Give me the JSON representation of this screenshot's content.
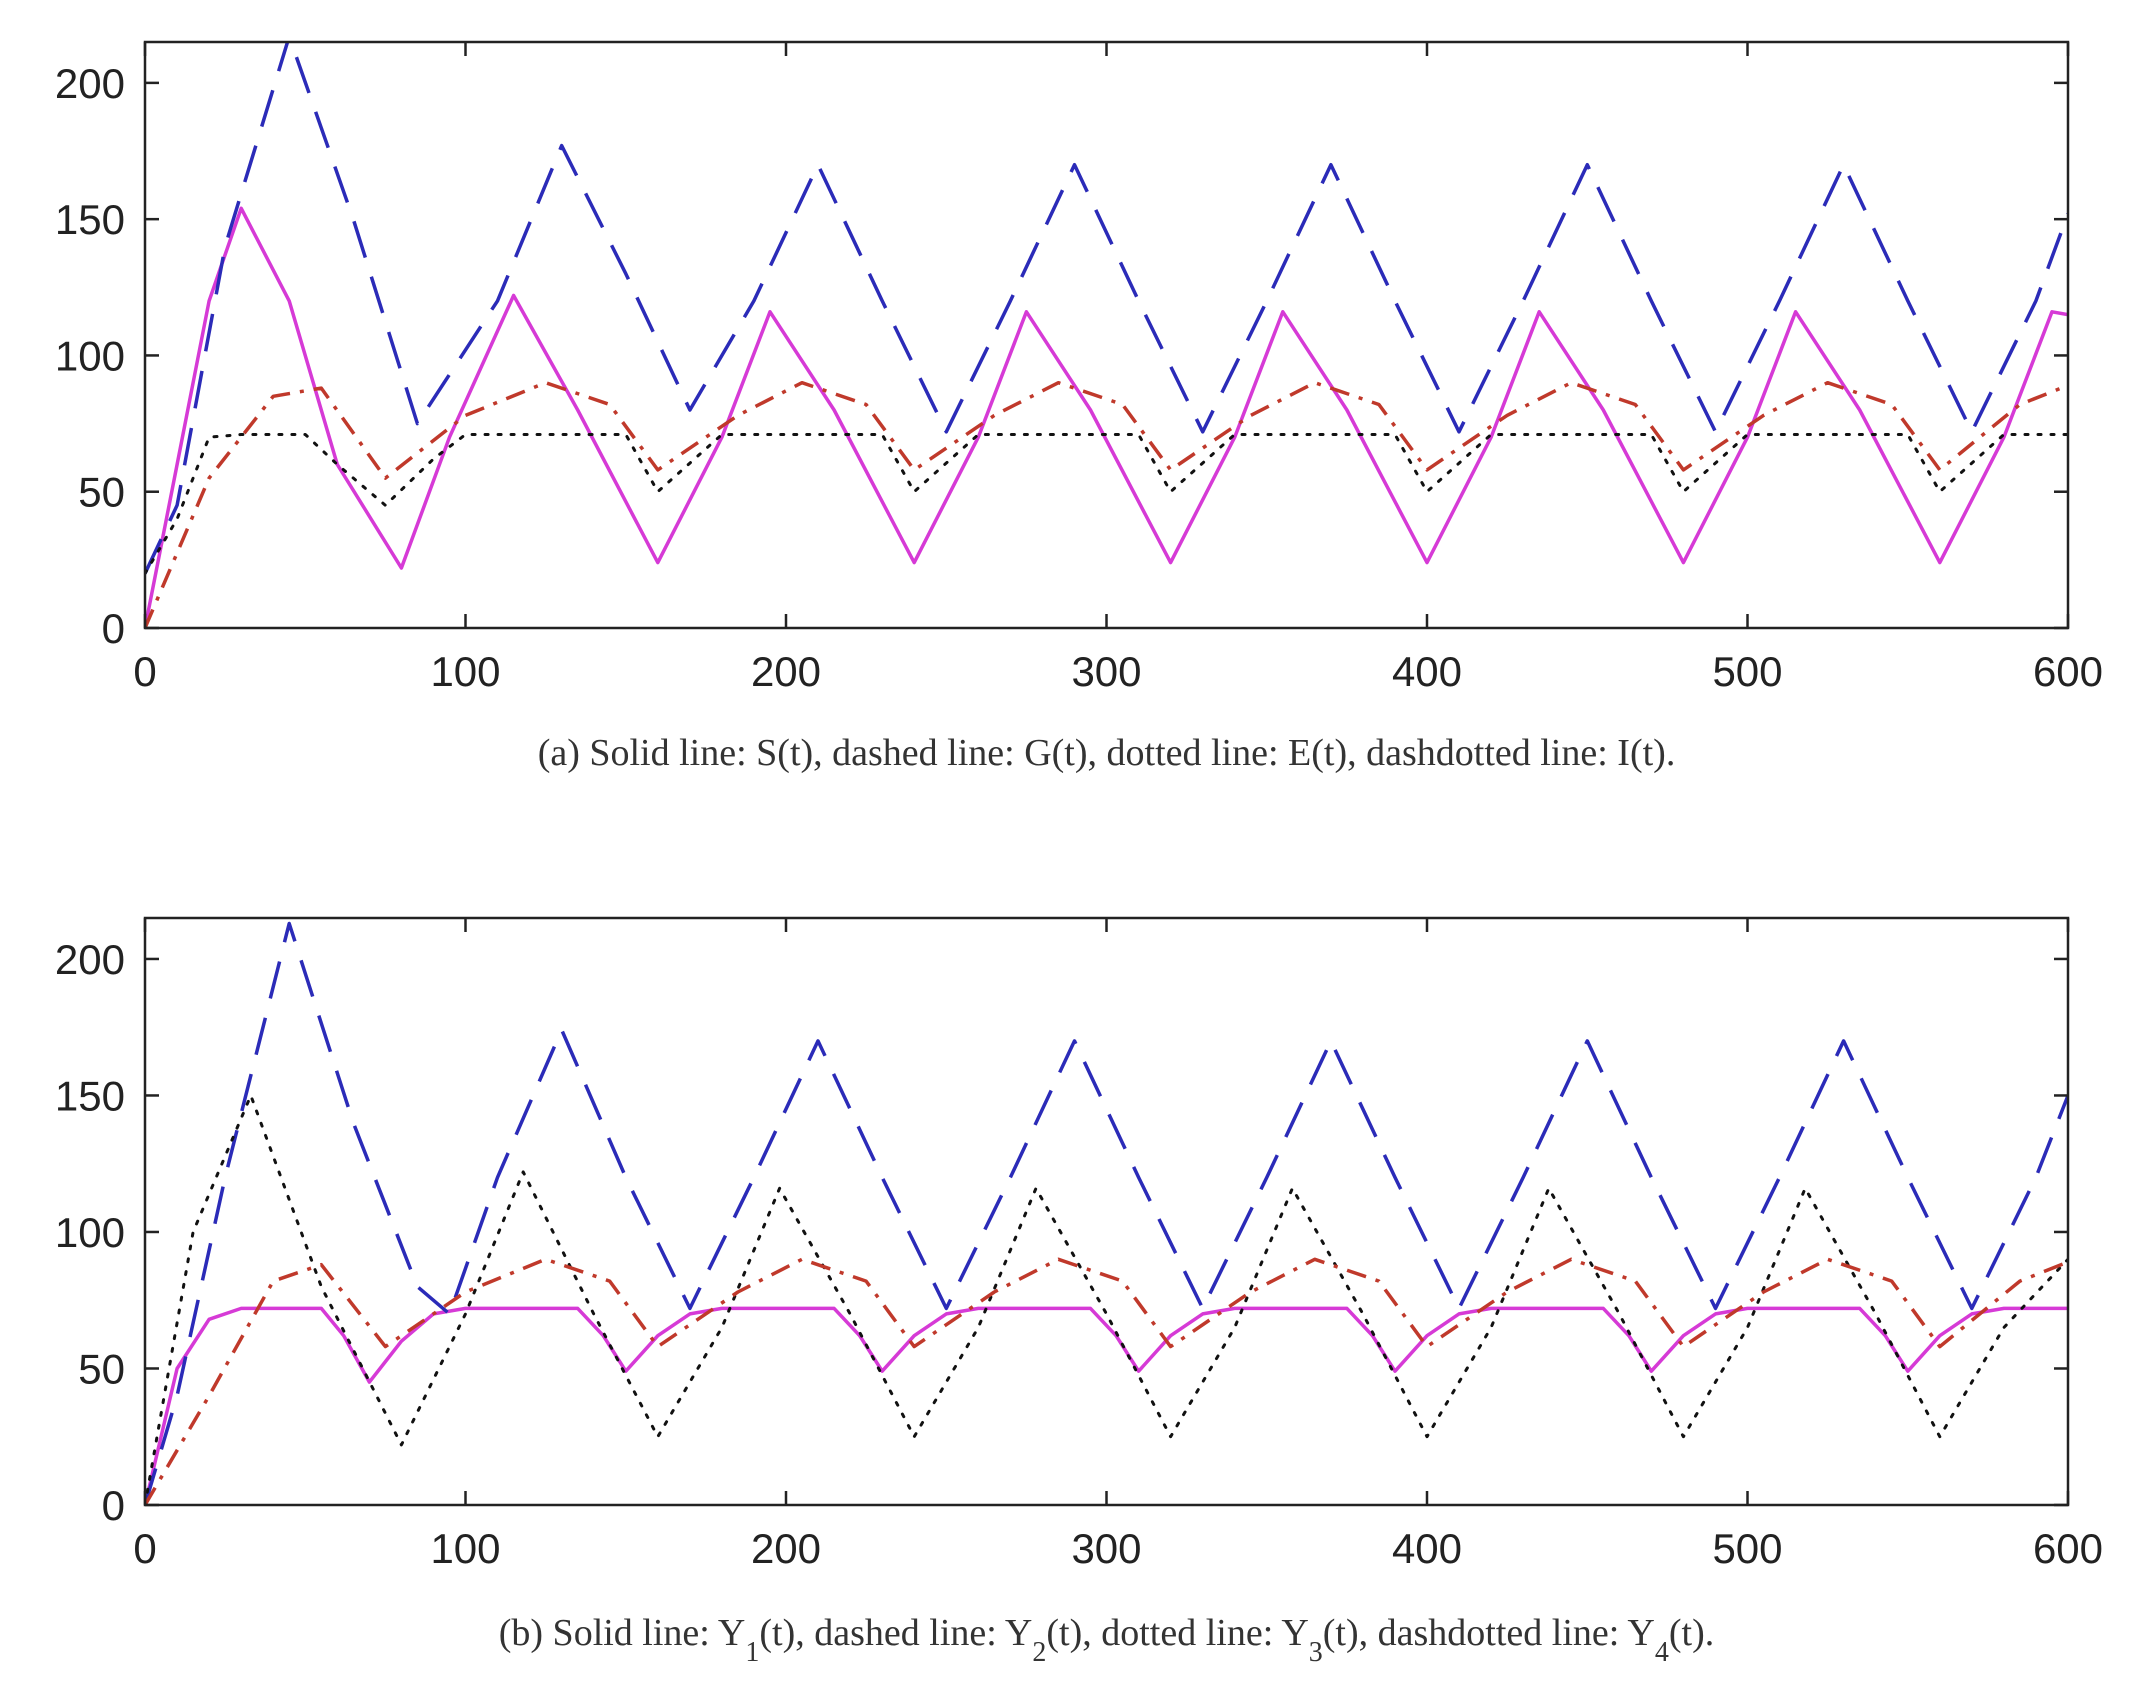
{
  "chart_data": [
    {
      "type": "line",
      "caption": "(a) Solid line: S(t), dashed line: G(t), dotted line: E(t), dashdotted line: I(t).",
      "xlim": [
        0,
        600
      ],
      "ylim": [
        0,
        215
      ],
      "xticks": [
        0,
        100,
        200,
        300,
        400,
        500,
        600
      ],
      "yticks": [
        0,
        50,
        100,
        150,
        200
      ],
      "grid": false,
      "series": [
        {
          "name": "S(t)",
          "style": "solid",
          "color": "#d63ad6",
          "x": [
            0,
            10,
            20,
            30,
            45,
            60,
            80,
            95,
            115,
            135,
            160,
            180,
            195,
            215,
            240,
            260,
            275,
            295,
            320,
            340,
            355,
            375,
            400,
            420,
            435,
            455,
            480,
            500,
            515,
            535,
            560,
            580,
            595,
            600
          ],
          "y": [
            0,
            60,
            120,
            154,
            120,
            60,
            22,
            70,
            122,
            80,
            24,
            70,
            116,
            80,
            24,
            70,
            116,
            80,
            24,
            70,
            116,
            80,
            24,
            70,
            116,
            80,
            24,
            70,
            116,
            80,
            24,
            70,
            116,
            115
          ]
        },
        {
          "name": "G(t)",
          "style": "dashed",
          "color": "#2b2bb8",
          "x": [
            0,
            10,
            25,
            45,
            65,
            85,
            110,
            130,
            150,
            170,
            190,
            210,
            230,
            250,
            270,
            290,
            310,
            330,
            350,
            370,
            390,
            410,
            430,
            450,
            470,
            490,
            510,
            530,
            550,
            570,
            590,
            600
          ],
          "y": [
            20,
            45,
            140,
            217,
            150,
            75,
            120,
            177,
            130,
            80,
            120,
            170,
            120,
            72,
            120,
            170,
            120,
            72,
            120,
            170,
            120,
            72,
            120,
            170,
            120,
            72,
            120,
            170,
            120,
            72,
            120,
            152
          ]
        },
        {
          "name": "E(t)",
          "style": "dotted",
          "color": "#111111",
          "x": [
            0,
            10,
            20,
            30,
            50,
            60,
            75,
            90,
            100,
            150,
            160,
            180,
            200,
            230,
            240,
            260,
            280,
            310,
            320,
            340,
            360,
            390,
            400,
            420,
            440,
            470,
            480,
            500,
            520,
            550,
            560,
            580,
            600
          ],
          "y": [
            20,
            40,
            70,
            71,
            71,
            60,
            45,
            62,
            71,
            71,
            50,
            71,
            71,
            71,
            50,
            71,
            71,
            71,
            50,
            71,
            71,
            71,
            50,
            71,
            71,
            71,
            50,
            71,
            71,
            71,
            50,
            71,
            71
          ]
        },
        {
          "name": "I(t)",
          "style": "dashdot",
          "color": "#c0392b",
          "x": [
            0,
            20,
            40,
            55,
            75,
            100,
            125,
            145,
            160,
            185,
            205,
            225,
            240,
            265,
            285,
            305,
            320,
            345,
            365,
            385,
            400,
            425,
            445,
            465,
            480,
            505,
            525,
            545,
            560,
            585,
            600
          ],
          "y": [
            0,
            55,
            85,
            88,
            55,
            78,
            90,
            82,
            58,
            78,
            90,
            82,
            58,
            78,
            90,
            82,
            58,
            78,
            90,
            82,
            58,
            78,
            90,
            82,
            58,
            78,
            90,
            82,
            58,
            82,
            89
          ]
        }
      ]
    },
    {
      "type": "line",
      "caption": {
        "parts": [
          {
            "t": "(b) Solid line: Y"
          },
          {
            "sub": "1"
          },
          {
            "t": "(t), dashed line: Y"
          },
          {
            "sub": "2"
          },
          {
            "t": "(t), dotted line: Y"
          },
          {
            "sub": "3"
          },
          {
            "t": "(t), dashdotted line: Y"
          },
          {
            "sub": "4"
          },
          {
            "t": "(t)."
          }
        ]
      },
      "xlim": [
        0,
        600
      ],
      "ylim": [
        0,
        215
      ],
      "xticks": [
        0,
        100,
        200,
        300,
        400,
        500,
        600
      ],
      "yticks": [
        0,
        50,
        100,
        150,
        200
      ],
      "grid": false,
      "series": [
        {
          "name": "Y1(t)",
          "style": "solid",
          "color": "#d63ad6",
          "x": [
            0,
            10,
            20,
            30,
            55,
            62,
            70,
            80,
            90,
            100,
            135,
            143,
            150,
            160,
            170,
            180,
            215,
            223,
            230,
            240,
            250,
            260,
            295,
            303,
            310,
            320,
            330,
            340,
            375,
            383,
            390,
            400,
            410,
            420,
            455,
            463,
            470,
            480,
            490,
            500,
            535,
            543,
            550,
            560,
            570,
            580,
            600
          ],
          "y": [
            0,
            50,
            68,
            72,
            72,
            62,
            45,
            60,
            70,
            72,
            72,
            62,
            49,
            62,
            70,
            72,
            72,
            62,
            49,
            62,
            70,
            72,
            72,
            62,
            49,
            62,
            70,
            72,
            72,
            62,
            49,
            62,
            70,
            72,
            72,
            62,
            49,
            62,
            70,
            72,
            72,
            62,
            49,
            62,
            70,
            72,
            72
          ]
        },
        {
          "name": "Y2(t)",
          "style": "dashed",
          "color": "#2b2bb8",
          "x": [
            0,
            10,
            25,
            45,
            65,
            85,
            95,
            110,
            130,
            150,
            170,
            190,
            210,
            230,
            250,
            270,
            290,
            310,
            330,
            350,
            370,
            390,
            410,
            430,
            450,
            470,
            490,
            510,
            530,
            550,
            570,
            590,
            600
          ],
          "y": [
            0,
            40,
            120,
            213,
            140,
            80,
            70,
            120,
            174,
            120,
            72,
            120,
            170,
            120,
            72,
            120,
            170,
            120,
            72,
            120,
            170,
            120,
            72,
            120,
            170,
            120,
            72,
            120,
            170,
            120,
            72,
            120,
            150
          ]
        },
        {
          "name": "Y3(t)",
          "style": "dotted",
          "color": "#111111",
          "x": [
            0,
            15,
            33,
            55,
            80,
            100,
            118,
            140,
            160,
            180,
            198,
            220,
            240,
            260,
            278,
            300,
            320,
            340,
            358,
            380,
            400,
            420,
            438,
            460,
            480,
            500,
            518,
            540,
            560,
            580,
            600
          ],
          "y": [
            0,
            100,
            150,
            80,
            22,
            70,
            122,
            70,
            25,
            65,
            116,
            70,
            25,
            65,
            116,
            70,
            25,
            65,
            116,
            70,
            25,
            65,
            116,
            70,
            25,
            65,
            116,
            70,
            25,
            65,
            90
          ]
        },
        {
          "name": "Y4(t)",
          "style": "dashdot",
          "color": "#c0392b",
          "x": [
            0,
            20,
            40,
            55,
            75,
            100,
            125,
            145,
            160,
            185,
            205,
            225,
            240,
            265,
            285,
            305,
            320,
            345,
            365,
            385,
            400,
            425,
            445,
            465,
            480,
            505,
            525,
            545,
            560,
            585,
            600
          ],
          "y": [
            0,
            40,
            82,
            88,
            58,
            78,
            90,
            82,
            58,
            78,
            90,
            82,
            58,
            78,
            90,
            82,
            58,
            78,
            90,
            82,
            58,
            78,
            90,
            82,
            58,
            78,
            90,
            82,
            58,
            82,
            89
          ]
        }
      ]
    }
  ]
}
